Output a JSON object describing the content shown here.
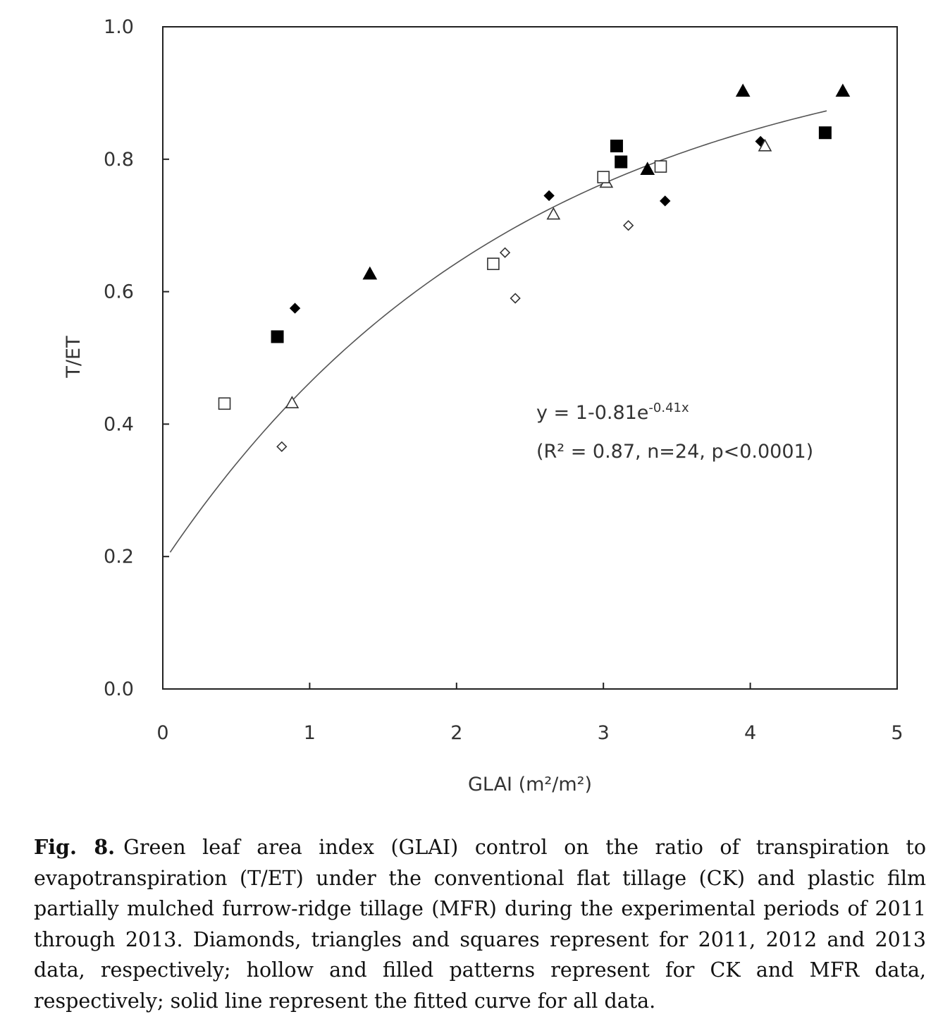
{
  "chart_data": {
    "type": "scatter",
    "xlabel": "GLAI (m²/m²)",
    "ylabel": "T/ET",
    "xlim": [
      0,
      5
    ],
    "ylim": [
      0,
      1
    ],
    "x_ticks": [
      "0",
      "1",
      "2",
      "3",
      "4",
      "5"
    ],
    "y_ticks": [
      "0.0",
      "0.2",
      "0.4",
      "0.6",
      "0.8",
      "1.0"
    ],
    "grid": false,
    "legend": "none",
    "equation": {
      "line1_prefix": "y = 1-0.81e",
      "line1_exponent": "-0.41x",
      "line2": "(R² = 0.87, n=24, p<0.0001)"
    },
    "fit": {
      "formula": "1-0.81*exp(-0.41*x)",
      "a": 0.81,
      "b": 0.41,
      "x_range": [
        0.05,
        4.52
      ]
    },
    "series": [
      {
        "marker": "diamond",
        "fill": "hollow",
        "points": [
          [
            0.81,
            0.366
          ],
          [
            2.33,
            0.659
          ],
          [
            2.4,
            0.59
          ],
          [
            3.17,
            0.7
          ]
        ]
      },
      {
        "marker": "diamond",
        "fill": "filled",
        "points": [
          [
            0.9,
            0.575
          ],
          [
            2.63,
            0.745
          ],
          [
            3.42,
            0.737
          ],
          [
            4.07,
            0.827
          ]
        ]
      },
      {
        "marker": "triangle",
        "fill": "hollow",
        "points": [
          [
            0.88,
            0.432
          ],
          [
            2.66,
            0.717
          ],
          [
            3.02,
            0.765
          ],
          [
            4.1,
            0.82
          ]
        ]
      },
      {
        "marker": "triangle",
        "fill": "filled",
        "points": [
          [
            1.41,
            0.627
          ],
          [
            3.3,
            0.785
          ],
          [
            3.95,
            0.903
          ],
          [
            4.63,
            0.903
          ]
        ]
      },
      {
        "marker": "square",
        "fill": "hollow",
        "points": [
          [
            0.42,
            0.431
          ],
          [
            2.25,
            0.642
          ],
          [
            3.0,
            0.773
          ],
          [
            3.39,
            0.789
          ]
        ]
      },
      {
        "marker": "square",
        "fill": "filled",
        "points": [
          [
            0.78,
            0.532
          ],
          [
            3.09,
            0.82
          ],
          [
            3.12,
            0.796
          ],
          [
            4.51,
            0.84
          ]
        ]
      }
    ]
  },
  "caption": {
    "label": "Fig. 8.",
    "text": "Green leaf area index (GLAI) control on the ratio of transpiration to evapotranspiration (T/ET) under the conventional flat tillage (CK) and plastic film partially mulched furrow-ridge tillage (MFR) during the experimental periods of 2011 through 2013. Diamonds, triangles and squares represent for 2011, 2012 and 2013 data, respectively; hollow and filled patterns represent for CK and MFR data, respectively; solid line represent the fitted curve for all data."
  }
}
